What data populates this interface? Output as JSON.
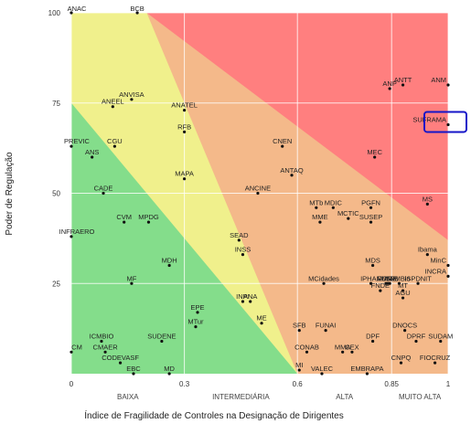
{
  "chart_data": {
    "type": "scatter",
    "xlabel": "Índice de Fragilidade de Controles na Designação de Dirigentes",
    "ylabel": "Poder de Regulação",
    "xlim": [
      0,
      1
    ],
    "ylim": [
      0,
      100
    ],
    "x_ticks": [
      {
        "value": 0,
        "label": "0"
      },
      {
        "value": 0.3,
        "label": "0.3"
      },
      {
        "value": 0.6,
        "label": "0.6"
      },
      {
        "value": 0.85,
        "label": "0.85"
      },
      {
        "value": 1,
        "label": "1"
      }
    ],
    "y_ticks": [
      {
        "value": 25,
        "label": "25"
      },
      {
        "value": 50,
        "label": "50"
      },
      {
        "value": 75,
        "label": "75"
      },
      {
        "value": 100,
        "label": "100"
      }
    ],
    "x_categories": [
      {
        "label": "BAIXA",
        "center": 0.15
      },
      {
        "label": "INTERMEDIÁRIA",
        "center": 0.45
      },
      {
        "label": "ALTA",
        "center": 0.725
      },
      {
        "label": "MUITO ALTA",
        "center": 0.925
      }
    ],
    "zone_colors": [
      "#84dd8b",
      "#f0f08c",
      "#f4b98a",
      "#ff7f7f"
    ],
    "grid": true,
    "highlight": {
      "label": "SUFRAMA",
      "color": "#1515c8"
    },
    "points": [
      {
        "label": "ANAC",
        "x": 0.0,
        "y": 100
      },
      {
        "label": "BCB",
        "x": 0.175,
        "y": 100
      },
      {
        "label": "ANVISA",
        "x": 0.16,
        "y": 76
      },
      {
        "label": "ANEEL",
        "x": 0.11,
        "y": 74
      },
      {
        "label": "ANATEL",
        "x": 0.3,
        "y": 73
      },
      {
        "label": "ANTT",
        "x": 0.88,
        "y": 80
      },
      {
        "label": "ANP",
        "x": 0.845,
        "y": 79
      },
      {
        "label": "ANM",
        "x": 1.0,
        "y": 80
      },
      {
        "label": "SUFRAMA",
        "x": 1.0,
        "y": 69
      },
      {
        "label": "PREVIC",
        "x": 0.0,
        "y": 63
      },
      {
        "label": "CGU",
        "x": 0.115,
        "y": 63
      },
      {
        "label": "ANS",
        "x": 0.055,
        "y": 60
      },
      {
        "label": "RFB",
        "x": 0.3,
        "y": 67
      },
      {
        "label": "CNEN",
        "x": 0.56,
        "y": 63
      },
      {
        "label": "MEC",
        "x": 0.805,
        "y": 60
      },
      {
        "label": "MAPA",
        "x": 0.3,
        "y": 54
      },
      {
        "label": "ANTAQ",
        "x": 0.585,
        "y": 55
      },
      {
        "label": "CADE",
        "x": 0.085,
        "y": 50
      },
      {
        "label": "ANCINE",
        "x": 0.495,
        "y": 50
      },
      {
        "label": "MS",
        "x": 0.945,
        "y": 47
      },
      {
        "label": "MTb",
        "x": 0.65,
        "y": 46
      },
      {
        "label": "MDIC",
        "x": 0.695,
        "y": 46
      },
      {
        "label": "PGFN",
        "x": 0.795,
        "y": 46
      },
      {
        "label": "MCTIC",
        "x": 0.735,
        "y": 43
      },
      {
        "label": "MME",
        "x": 0.66,
        "y": 42
      },
      {
        "label": "SUSEP",
        "x": 0.795,
        "y": 42
      },
      {
        "label": "CVM",
        "x": 0.14,
        "y": 42
      },
      {
        "label": "MPDG",
        "x": 0.205,
        "y": 42
      },
      {
        "label": "INFRAERO",
        "x": 0.0,
        "y": 38
      },
      {
        "label": "SEAD",
        "x": 0.445,
        "y": 37
      },
      {
        "label": "INSS",
        "x": 0.455,
        "y": 33
      },
      {
        "label": "Ibama",
        "x": 0.945,
        "y": 33
      },
      {
        "label": "MDH",
        "x": 0.26,
        "y": 30
      },
      {
        "label": "MDS",
        "x": 0.8,
        "y": 30
      },
      {
        "label": "MinC",
        "x": 1.0,
        "y": 30
      },
      {
        "label": "INCRA",
        "x": 1.0,
        "y": 27
      },
      {
        "label": "MF",
        "x": 0.16,
        "y": 25
      },
      {
        "label": "MCidades",
        "x": 0.67,
        "y": 25
      },
      {
        "label": "IPHAN",
        "x": 0.795,
        "y": 25
      },
      {
        "label": "MJSP",
        "x": 0.835,
        "y": 25
      },
      {
        "label": "FUNAI",
        "x": 0.84,
        "y": 25
      },
      {
        "label": "MRE",
        "x": 0.845,
        "y": 25
      },
      {
        "label": "ICMBio",
        "x": 0.87,
        "y": 25
      },
      {
        "label": "ISPDNIT",
        "x": 0.92,
        "y": 25
      },
      {
        "label": "FNDE",
        "x": 0.82,
        "y": 23
      },
      {
        "label": "MT",
        "x": 0.88,
        "y": 23
      },
      {
        "label": "AGU",
        "x": 0.88,
        "y": 21
      },
      {
        "label": "INPI",
        "x": 0.455,
        "y": 20
      },
      {
        "label": "ANA",
        "x": 0.475,
        "y": 20
      },
      {
        "label": "EPE",
        "x": 0.335,
        "y": 17
      },
      {
        "label": "ME",
        "x": 0.505,
        "y": 14
      },
      {
        "label": "MTur",
        "x": 0.33,
        "y": 13
      },
      {
        "label": "SFB",
        "x": 0.605,
        "y": 12
      },
      {
        "label": "FUNAI",
        "x": 0.675,
        "y": 12
      },
      {
        "label": "DNOCS",
        "x": 0.885,
        "y": 12
      },
      {
        "label": "SUDENE",
        "x": 0.24,
        "y": 9
      },
      {
        "label": "ICMBIO",
        "x": 0.08,
        "y": 9
      },
      {
        "label": "DPF",
        "x": 0.8,
        "y": 9
      },
      {
        "label": "DPRF",
        "x": 0.915,
        "y": 9
      },
      {
        "label": "SUDAM",
        "x": 0.98,
        "y": 9
      },
      {
        "label": "CM",
        "x": 0.0,
        "y": 6
      },
      {
        "label": "CMAER",
        "x": 0.09,
        "y": 6
      },
      {
        "label": "CONAB",
        "x": 0.625,
        "y": 6
      },
      {
        "label": "MMA",
        "x": 0.72,
        "y": 6
      },
      {
        "label": "CEX",
        "x": 0.745,
        "y": 6
      },
      {
        "label": "CODEVASF",
        "x": 0.13,
        "y": 3
      },
      {
        "label": "CNPQ",
        "x": 0.875,
        "y": 3
      },
      {
        "label": "FIOCRUZ",
        "x": 0.965,
        "y": 3
      },
      {
        "label": "EBC",
        "x": 0.165,
        "y": 0
      },
      {
        "label": "MD",
        "x": 0.26,
        "y": 0
      },
      {
        "label": "MI",
        "x": 0.605,
        "y": 1
      },
      {
        "label": "VALEC",
        "x": 0.665,
        "y": 0
      },
      {
        "label": "EMBRAPA",
        "x": 0.785,
        "y": 0
      }
    ]
  }
}
